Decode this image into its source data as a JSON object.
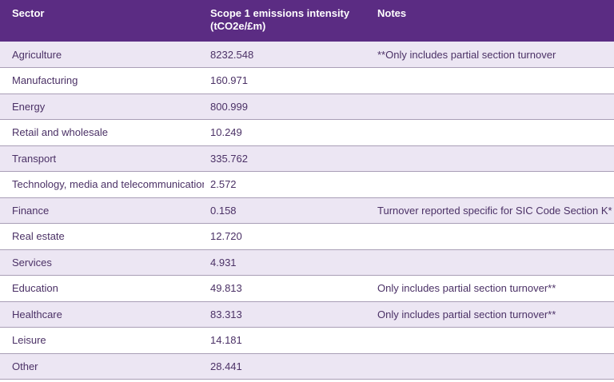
{
  "chart_data": {
    "type": "table",
    "title": "",
    "columns": [
      "Sector",
      "Scope 1 emissions intensity (tCO2e/£m)",
      "Notes"
    ],
    "header": {
      "sector": "Sector",
      "intensity_title": "Scope 1 emissions intensity",
      "intensity_subtitle": "(tCO2e/£m)",
      "notes": "Notes"
    },
    "rows": [
      {
        "sector": "Agriculture",
        "intensity": "8232.548",
        "notes": "**Only includes partial section turnover"
      },
      {
        "sector": "Manufacturing",
        "intensity": "160.971",
        "notes": ""
      },
      {
        "sector": "Energy",
        "intensity": "800.999",
        "notes": ""
      },
      {
        "sector": "Retail and wholesale",
        "intensity": "10.249",
        "notes": ""
      },
      {
        "sector": "Transport",
        "intensity": "335.762",
        "notes": ""
      },
      {
        "sector": "Technology, media and telecommunications",
        "intensity": "2.572",
        "notes": ""
      },
      {
        "sector": "Finance",
        "intensity": "0.158",
        "notes": "Turnover reported specific for SIC Code Section K*"
      },
      {
        "sector": "Real estate",
        "intensity": "12.720",
        "notes": ""
      },
      {
        "sector": "Services",
        "intensity": "4.931",
        "notes": ""
      },
      {
        "sector": "Education",
        "intensity": "49.813",
        "notes": "Only includes partial section turnover**"
      },
      {
        "sector": "Healthcare",
        "intensity": "83.313",
        "notes": "Only includes partial section turnover**"
      },
      {
        "sector": "Leisure",
        "intensity": "14.181",
        "notes": ""
      },
      {
        "sector": "Other",
        "intensity": "28.441",
        "notes": ""
      }
    ]
  },
  "colors": {
    "header_bg": "#5b2c83",
    "header_text": "#ffffff",
    "row_alt_bg": "#ece6f3",
    "row_bg": "#ffffff",
    "cell_text": "#4b3166",
    "row_border": "#a99eb6"
  }
}
